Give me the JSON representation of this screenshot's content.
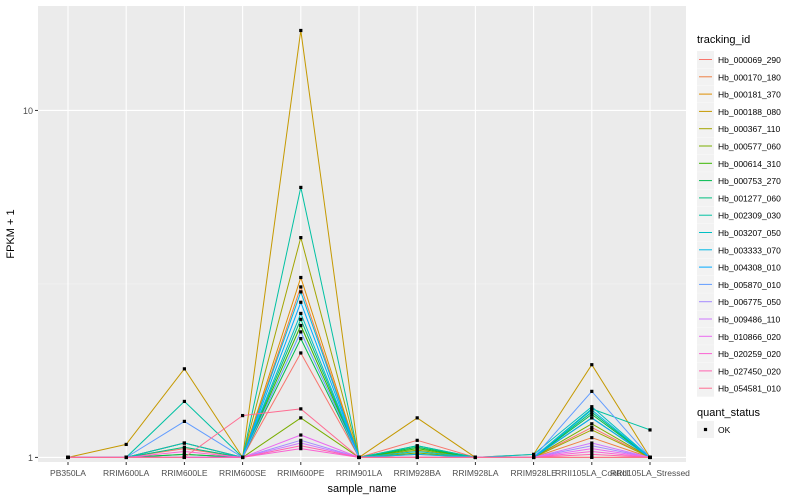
{
  "chart_data": {
    "type": "line",
    "title": "",
    "xlabel": "sample_name",
    "ylabel": "FPKM + 1",
    "y_scale": "log10",
    "ylim": [
      0.97,
      20
    ],
    "y_ticks": [
      {
        "value": 1,
        "label": "1"
      },
      {
        "value": 10,
        "label": "10"
      }
    ],
    "categories": [
      "PB350LA",
      "RRIM600LA",
      "RRIM600LE",
      "RRIM600SE",
      "RRIM600PE",
      "RRIM901LA",
      "RRIM928BA",
      "RRIM928LA",
      "RRIM928LE",
      "RRII105LA_Control",
      "RRII105LA_Stressed"
    ],
    "legend_title": "tracking_id",
    "series": [
      {
        "name": "Hb_000069_290",
        "color": "#F8766D",
        "values": [
          1.0,
          1.0,
          1.06,
          1.0,
          2.0,
          1.0,
          1.12,
          1.0,
          1.0,
          1.22,
          1.0
        ]
      },
      {
        "name": "Hb_000170_180",
        "color": "#EE8043",
        "values": [
          1.0,
          1.0,
          1.1,
          1.0,
          3.1,
          1.0,
          1.02,
          1.0,
          1.0,
          1.14,
          1.0
        ]
      },
      {
        "name": "Hb_000181_370",
        "color": "#DF8E00",
        "values": [
          1.0,
          1.0,
          1.0,
          1.0,
          3.3,
          1.0,
          1.0,
          1.0,
          1.0,
          1.0,
          1.0
        ]
      },
      {
        "name": "Hb_000188_080",
        "color": "#C59900",
        "values": [
          1.0,
          1.09,
          1.8,
          1.0,
          17.0,
          1.0,
          1.3,
          1.0,
          1.02,
          1.85,
          1.0
        ]
      },
      {
        "name": "Hb_000367_110",
        "color": "#A3A500",
        "values": [
          1.0,
          1.0,
          1.1,
          1.0,
          4.3,
          1.0,
          1.05,
          1.0,
          1.0,
          1.2,
          1.0
        ]
      },
      {
        "name": "Hb_000577_060",
        "color": "#7AAE00",
        "values": [
          1.0,
          1.0,
          1.02,
          1.0,
          1.3,
          1.0,
          1.03,
          1.0,
          1.0,
          1.25,
          1.0
        ]
      },
      {
        "name": "Hb_000614_310",
        "color": "#39B600",
        "values": [
          1.0,
          1.0,
          1.0,
          1.0,
          2.4,
          1.0,
          1.06,
          1.0,
          1.0,
          1.3,
          1.0
        ]
      },
      {
        "name": "Hb_000753_270",
        "color": "#00BB4E",
        "values": [
          1.0,
          1.0,
          1.02,
          1.0,
          2.2,
          1.0,
          1.07,
          1.0,
          1.0,
          1.33,
          1.0
        ]
      },
      {
        "name": "Hb_001277_060",
        "color": "#00BF7D",
        "values": [
          1.0,
          1.0,
          1.07,
          1.0,
          2.5,
          1.0,
          1.08,
          1.0,
          1.0,
          1.35,
          1.0
        ]
      },
      {
        "name": "Hb_002309_030",
        "color": "#00C1A3",
        "values": [
          1.0,
          1.0,
          1.45,
          1.0,
          6.0,
          1.0,
          1.08,
          1.0,
          1.0,
          1.38,
          1.2
        ]
      },
      {
        "name": "Hb_003207_050",
        "color": "#00BFC4",
        "values": [
          1.0,
          1.0,
          1.1,
          1.0,
          2.6,
          1.0,
          1.04,
          1.0,
          1.02,
          1.4,
          1.0
        ]
      },
      {
        "name": "Hb_003333_070",
        "color": "#00B8E5",
        "values": [
          1.0,
          1.0,
          1.0,
          1.0,
          3.0,
          1.0,
          1.02,
          1.0,
          1.0,
          1.37,
          1.0
        ]
      },
      {
        "name": "Hb_004308_010",
        "color": "#00A9FF",
        "values": [
          1.0,
          1.0,
          1.0,
          1.0,
          2.8,
          1.0,
          1.0,
          1.0,
          1.0,
          1.3,
          1.0
        ]
      },
      {
        "name": "Hb_005870_010",
        "color": "#619CFF",
        "values": [
          1.0,
          1.0,
          1.27,
          1.0,
          2.3,
          1.0,
          1.0,
          1.0,
          1.0,
          1.55,
          1.0
        ]
      },
      {
        "name": "Hb_006775_050",
        "color": "#A58AFF",
        "values": [
          1.0,
          1.0,
          1.0,
          1.0,
          1.12,
          1.0,
          1.0,
          1.0,
          1.0,
          1.08,
          1.0
        ]
      },
      {
        "name": "Hb_009486_110",
        "color": "#CF78FF",
        "values": [
          1.0,
          1.0,
          1.0,
          1.0,
          1.1,
          1.0,
          1.0,
          1.0,
          1.0,
          1.1,
          1.0
        ]
      },
      {
        "name": "Hb_010866_020",
        "color": "#EB6AF0",
        "values": [
          1.0,
          1.0,
          1.0,
          1.0,
          1.16,
          1.0,
          1.0,
          1.0,
          1.0,
          1.06,
          1.0
        ]
      },
      {
        "name": "Hb_020259_020",
        "color": "#FA62D3",
        "values": [
          1.0,
          1.0,
          1.04,
          1.0,
          1.06,
          1.0,
          1.0,
          1.0,
          1.0,
          1.04,
          1.0
        ]
      },
      {
        "name": "Hb_027450_020",
        "color": "#FF62B0",
        "values": [
          1.0,
          1.0,
          1.0,
          1.0,
          1.08,
          1.0,
          1.0,
          1.0,
          1.0,
          1.02,
          1.0
        ]
      },
      {
        "name": "Hb_054581_010",
        "color": "#FF6C91",
        "values": [
          1.0,
          1.0,
          1.0,
          1.32,
          1.38,
          1.0,
          1.0,
          1.0,
          1.0,
          1.0,
          1.0
        ]
      }
    ],
    "legend2": {
      "title": "quant_status",
      "items": [
        {
          "label": "OK"
        }
      ]
    },
    "grid": true,
    "legend_position": "right"
  }
}
